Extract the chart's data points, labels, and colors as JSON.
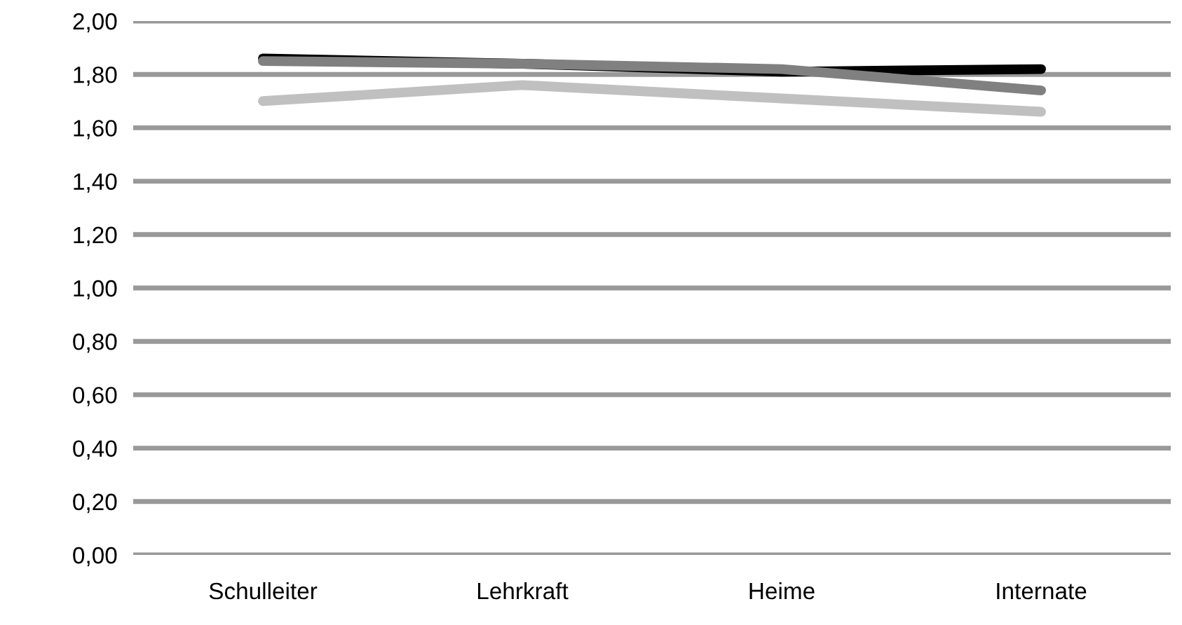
{
  "chart_data": {
    "type": "line",
    "categories": [
      "Schulleiter",
      "Lehrkraft",
      "Heime",
      "Internate"
    ],
    "series": [
      {
        "color": "#000000",
        "values": [
          1.86,
          1.84,
          1.81,
          1.82
        ]
      },
      {
        "color": "#808080",
        "values": [
          1.85,
          1.84,
          1.82,
          1.74
        ]
      },
      {
        "color": "#c0c0c0",
        "values": [
          1.7,
          1.76,
          1.71,
          1.66
        ]
      }
    ],
    "ylim": [
      0,
      2
    ],
    "yticks": [
      {
        "value": 0,
        "label": "0,00"
      },
      {
        "value": 0.2,
        "label": "0,20"
      },
      {
        "value": 0.4,
        "label": "0,40"
      },
      {
        "value": 0.6,
        "label": "0,60"
      },
      {
        "value": 0.8,
        "label": "0,80"
      },
      {
        "value": 1.0,
        "label": "1,00"
      },
      {
        "value": 1.2,
        "label": "1,20"
      },
      {
        "value": 1.4,
        "label": "1,40"
      },
      {
        "value": 1.6,
        "label": "1,60"
      },
      {
        "value": 1.8,
        "label": "1,80"
      },
      {
        "value": 2.0,
        "label": "2,00"
      }
    ],
    "grid": "y",
    "marker": "none",
    "line_style": "solid"
  }
}
